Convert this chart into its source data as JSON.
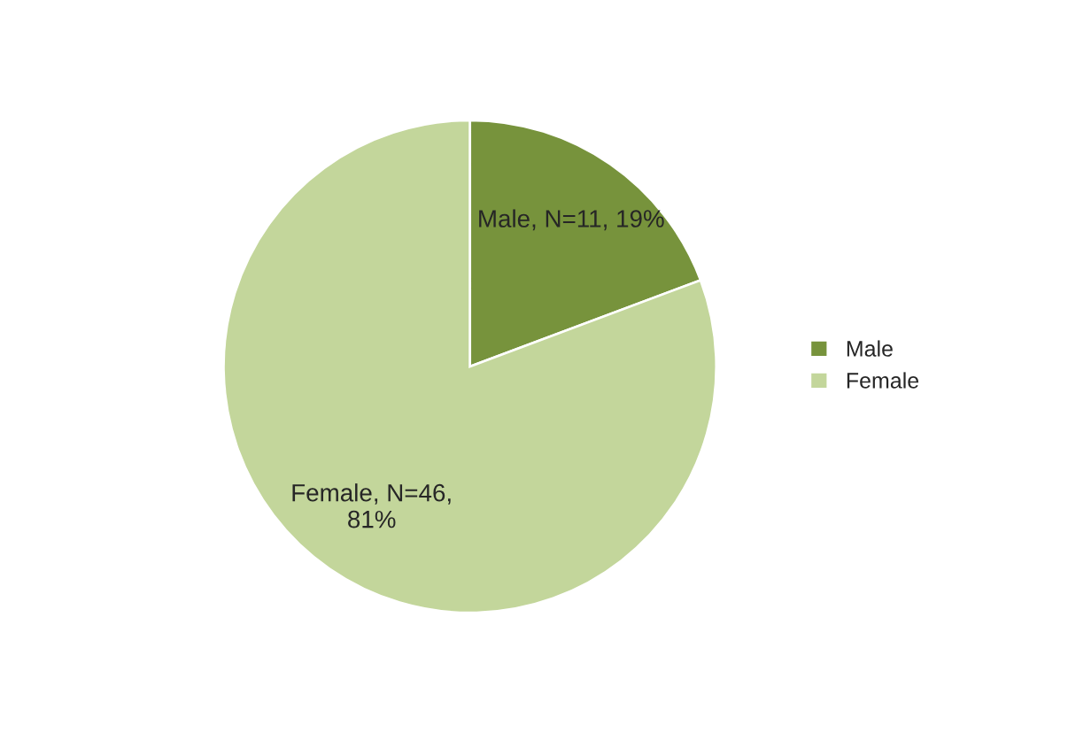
{
  "chart_data": {
    "type": "pie",
    "categories": [
      "Male",
      "Female"
    ],
    "values": [
      11,
      46
    ],
    "colors": [
      "#77933c",
      "#c3d69b"
    ],
    "value_labels": [
      "Male, N=11, 19%",
      "Female, N=46,\n81%"
    ],
    "legend": "right"
  }
}
